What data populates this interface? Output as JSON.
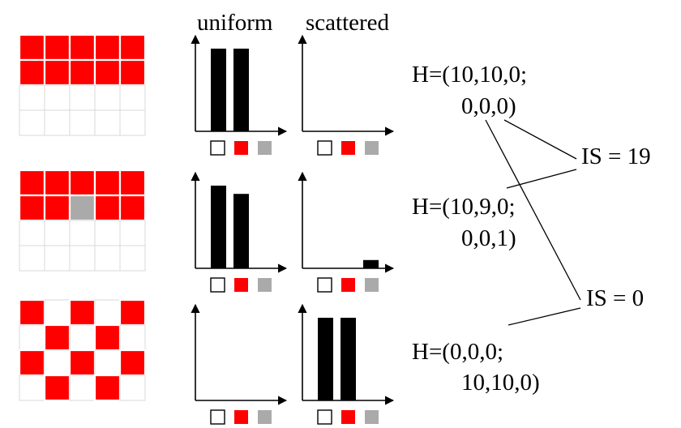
{
  "colors": {
    "red": "#ff0000",
    "gray": "#aaaaaa",
    "bar": "#000000",
    "grid_line": "#d9d9d9",
    "white": "#ffffff"
  },
  "headers": {
    "uniform": "uniform",
    "scattered": "scattered"
  },
  "rows": [
    {
      "grid_pattern": "red rows 1-2 fully filled; rows 3-4 white",
      "uniform_bars": [
        10,
        10,
        0
      ],
      "scattered_bars": [
        0,
        0,
        0
      ],
      "h_line1": "H=(10,10,0;",
      "h_line2": "0,0,0)"
    },
    {
      "grid_pattern": "red rows 1-2 with one gray cell at row 2 col 3; rows 3-4 white",
      "uniform_bars": [
        10,
        9,
        0
      ],
      "scattered_bars": [
        0,
        0,
        1
      ],
      "h_line1": "H=(10,9,0;",
      "h_line2": "0,0,1)"
    },
    {
      "grid_pattern": "red/white checkerboard",
      "uniform_bars": [
        0,
        0,
        0
      ],
      "scattered_bars": [
        10,
        10,
        0
      ],
      "h_line1": "H=(0,0,0;",
      "h_line2": "10,10,0)"
    }
  ],
  "legend_swatches": [
    "white",
    "red",
    "gray"
  ],
  "is_labels": {
    "top": "IS = 19",
    "bottom": "IS = 0"
  },
  "icons": {
    "axis": "axis-arrow-icon",
    "swatch": "color-swatch-icon"
  }
}
